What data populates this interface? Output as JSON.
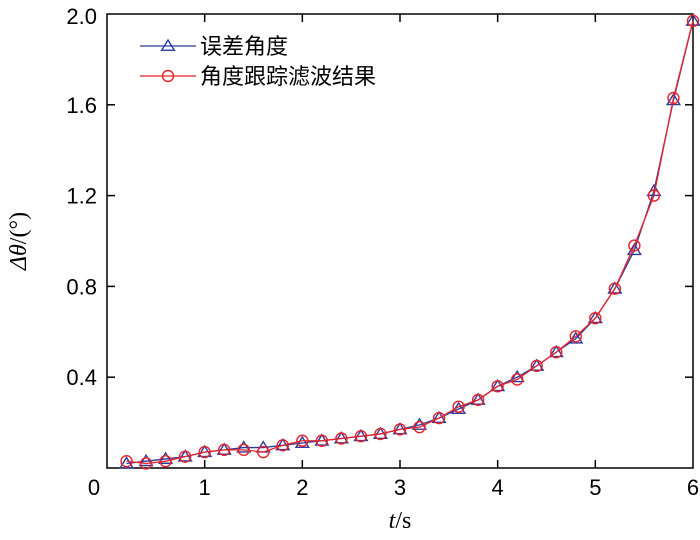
{
  "chart_data": {
    "type": "line",
    "xlabel": "t/s",
    "ylabel": "Δθ/(°)",
    "xlim": [
      0,
      6
    ],
    "ylim": [
      0,
      2.0
    ],
    "x_ticks": [
      "0",
      "1",
      "2",
      "3",
      "4",
      "5",
      "6"
    ],
    "y_ticks": [
      "0.4",
      "0.8",
      "1.2",
      "1.6",
      "2.0"
    ],
    "grid": false,
    "legend_position": "top-left",
    "series": [
      {
        "name": "误差角度",
        "color": "#2b3a9b",
        "marker": "triangle",
        "x": [
          0.2,
          0.4,
          0.6,
          0.8,
          1.0,
          1.2,
          1.4,
          1.6,
          1.8,
          2.0,
          2.2,
          2.4,
          2.6,
          2.8,
          3.0,
          3.2,
          3.4,
          3.6,
          3.8,
          4.0,
          4.2,
          4.4,
          4.6,
          4.8,
          5.0,
          5.2,
          5.4,
          5.6,
          5.8,
          6.0
        ],
        "values": [
          0.02,
          0.03,
          0.04,
          0.05,
          0.07,
          0.08,
          0.09,
          0.09,
          0.1,
          0.11,
          0.12,
          0.13,
          0.14,
          0.15,
          0.17,
          0.19,
          0.22,
          0.26,
          0.3,
          0.36,
          0.4,
          0.45,
          0.51,
          0.57,
          0.66,
          0.79,
          0.96,
          1.22,
          1.62,
          1.97
        ]
      },
      {
        "name": "角度跟踪滤波结果",
        "color": "#e8232a",
        "marker": "circle",
        "x": [
          0.2,
          0.4,
          0.6,
          0.8,
          1.0,
          1.2,
          1.4,
          1.6,
          1.8,
          2.0,
          2.2,
          2.4,
          2.6,
          2.8,
          3.0,
          3.2,
          3.4,
          3.6,
          3.8,
          4.0,
          4.2,
          4.4,
          4.6,
          4.8,
          5.0,
          5.2,
          5.4,
          5.6,
          5.8,
          6.0
        ],
        "values": [
          0.03,
          0.02,
          0.03,
          0.05,
          0.07,
          0.08,
          0.08,
          0.07,
          0.1,
          0.12,
          0.12,
          0.13,
          0.14,
          0.15,
          0.17,
          0.18,
          0.22,
          0.27,
          0.3,
          0.36,
          0.39,
          0.45,
          0.51,
          0.58,
          0.66,
          0.79,
          0.98,
          1.2,
          1.63,
          1.97
        ]
      }
    ]
  }
}
